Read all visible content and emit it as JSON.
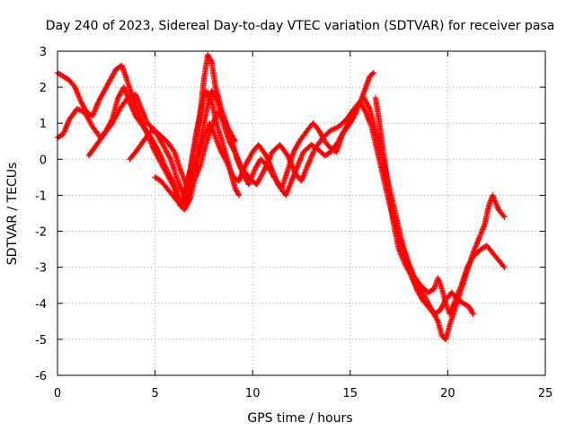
{
  "chart_data": {
    "type": "scatter",
    "title": "Day 240 of 2023, Sidereal Day-to-day VTEC variation (SDTVAR) for receiver pasa",
    "xlabel": "GPS time / hours",
    "ylabel": "SDTVAR / TECUs",
    "xlim": [
      0,
      25
    ],
    "ylim": [
      -6,
      3
    ],
    "x_ticks": [
      0,
      5,
      10,
      15,
      20,
      25
    ],
    "y_ticks": [
      -6,
      -5,
      -4,
      -3,
      -2,
      -1,
      0,
      1,
      2,
      3
    ],
    "x_tick_labels": [
      "0",
      "5",
      "10",
      "15",
      "20",
      "25"
    ],
    "y_tick_labels": [
      "-6",
      "-5",
      "-4",
      "-3",
      "-2",
      "-1",
      "0",
      "1",
      "2",
      "3"
    ],
    "grid": true,
    "marker": "+",
    "series": [
      {
        "color": "#ff0000",
        "tracks": [
          [
            [
              0.0,
              2.4
            ],
            [
              0.3,
              2.3
            ],
            [
              0.6,
              2.2
            ],
            [
              0.9,
              2.0
            ],
            [
              1.2,
              1.6
            ],
            [
              1.5,
              1.3
            ],
            [
              1.8,
              1.2
            ],
            [
              2.1,
              1.6
            ],
            [
              2.4,
              1.9
            ],
            [
              2.7,
              2.2
            ],
            [
              3.0,
              2.5
            ],
            [
              3.3,
              2.6
            ],
            [
              3.5,
              2.3
            ],
            [
              3.8,
              1.8
            ],
            [
              4.2,
              1.2
            ],
            [
              4.6,
              0.7
            ],
            [
              5.0,
              0.2
            ],
            [
              5.5,
              -0.3
            ],
            [
              6.0,
              -0.8
            ],
            [
              6.3,
              -1.3
            ],
            [
              6.5,
              -1.0
            ],
            [
              6.8,
              -0.3
            ],
            [
              7.1,
              0.7
            ],
            [
              7.4,
              1.5
            ],
            [
              7.6,
              1.9
            ],
            [
              7.9,
              1.6
            ],
            [
              8.2,
              0.9
            ],
            [
              8.5,
              0.4
            ],
            [
              8.8,
              -0.2
            ],
            [
              9.1,
              -0.8
            ],
            [
              9.3,
              -1.0
            ]
          ],
          [
            [
              0.0,
              0.6
            ],
            [
              0.3,
              0.7
            ],
            [
              0.6,
              1.1
            ],
            [
              1.0,
              1.4
            ],
            [
              1.4,
              1.3
            ],
            [
              1.8,
              0.9
            ],
            [
              2.2,
              0.6
            ],
            [
              2.5,
              0.8
            ],
            [
              2.8,
              1.1
            ],
            [
              3.1,
              1.7
            ],
            [
              3.4,
              2.0
            ],
            [
              3.7,
              1.6
            ],
            [
              4.0,
              1.2
            ],
            [
              4.4,
              0.9
            ],
            [
              4.8,
              0.6
            ],
            [
              5.2,
              0.2
            ],
            [
              5.6,
              -0.3
            ],
            [
              6.0,
              -0.7
            ],
            [
              6.2,
              -1.1
            ],
            [
              6.4,
              -1.3
            ],
            [
              6.7,
              -0.6
            ],
            [
              7.0,
              0.3
            ],
            [
              7.3,
              1.2
            ],
            [
              7.5,
              2.2
            ],
            [
              7.7,
              2.9
            ],
            [
              7.9,
              2.7
            ],
            [
              8.1,
              2.0
            ],
            [
              8.4,
              1.4
            ],
            [
              8.7,
              0.9
            ],
            [
              9.0,
              0.4
            ],
            [
              9.2,
              0.0
            ],
            [
              9.5,
              -0.4
            ],
            [
              9.8,
              -0.7
            ],
            [
              10.1,
              -0.3
            ],
            [
              10.4,
              0.0
            ],
            [
              10.8,
              -0.2
            ],
            [
              11.1,
              -0.5
            ],
            [
              11.5,
              -0.8
            ],
            [
              11.8,
              -0.3
            ],
            [
              12.1,
              0.2
            ],
            [
              12.4,
              0.5
            ],
            [
              12.8,
              0.8
            ],
            [
              13.1,
              1.0
            ],
            [
              13.4,
              0.8
            ],
            [
              13.7,
              0.5
            ],
            [
              14.0,
              0.3
            ],
            [
              14.3,
              0.2
            ],
            [
              14.6,
              0.7
            ],
            [
              15.0,
              1.0
            ],
            [
              15.3,
              1.3
            ],
            [
              15.6,
              1.7
            ],
            [
              15.8,
              2.0
            ],
            [
              16.0,
              2.3
            ],
            [
              16.2,
              2.4
            ]
          ],
          [
            [
              1.6,
              0.1
            ],
            [
              2.0,
              0.4
            ],
            [
              2.4,
              0.7
            ],
            [
              2.8,
              1.0
            ],
            [
              3.2,
              1.4
            ],
            [
              3.6,
              1.7
            ],
            [
              4.0,
              1.8
            ],
            [
              4.3,
              1.4
            ],
            [
              4.6,
              1.0
            ],
            [
              5.0,
              0.8
            ],
            [
              5.4,
              0.4
            ],
            [
              5.8,
              0.0
            ],
            [
              6.1,
              -0.5
            ],
            [
              6.4,
              -0.9
            ],
            [
              6.6,
              -1.2
            ],
            [
              6.8,
              -0.8
            ],
            [
              7.1,
              -0.1
            ],
            [
              7.4,
              0.7
            ],
            [
              7.7,
              1.5
            ],
            [
              7.9,
              1.9
            ],
            [
              8.2,
              1.6
            ],
            [
              8.5,
              1.0
            ],
            [
              8.8,
              0.5
            ],
            [
              9.1,
              0.2
            ],
            [
              9.4,
              -0.2
            ],
            [
              9.8,
              -0.5
            ],
            [
              10.2,
              -0.7
            ],
            [
              10.6,
              -0.3
            ],
            [
              11.0,
              0.2
            ],
            [
              11.4,
              0.4
            ],
            [
              11.8,
              0.1
            ],
            [
              12.2,
              -0.4
            ],
            [
              12.5,
              -0.6
            ],
            [
              12.8,
              -0.2
            ],
            [
              13.2,
              0.3
            ],
            [
              13.6,
              0.6
            ],
            [
              14.0,
              0.8
            ],
            [
              14.4,
              0.9
            ],
            [
              14.8,
              1.1
            ],
            [
              15.2,
              1.4
            ],
            [
              15.5,
              1.6
            ],
            [
              15.8,
              1.3
            ],
            [
              16.1,
              0.9
            ],
            [
              16.4,
              0.2
            ],
            [
              16.7,
              -0.5
            ],
            [
              17.0,
              -1.2
            ],
            [
              17.3,
              -1.8
            ],
            [
              17.6,
              -2.3
            ],
            [
              17.9,
              -2.8
            ],
            [
              18.2,
              -3.2
            ],
            [
              18.6,
              -3.5
            ],
            [
              19.0,
              -3.7
            ],
            [
              19.3,
              -3.6
            ],
            [
              19.5,
              -3.3
            ],
            [
              19.7,
              -3.6
            ],
            [
              19.9,
              -4.0
            ],
            [
              20.1,
              -4.3
            ],
            [
              20.4,
              -3.9
            ],
            [
              20.7,
              -3.5
            ],
            [
              21.0,
              -3.0
            ],
            [
              21.3,
              -2.7
            ],
            [
              21.7,
              -2.5
            ],
            [
              22.0,
              -2.4
            ],
            [
              22.3,
              -2.6
            ],
            [
              22.6,
              -2.8
            ],
            [
              22.9,
              -3.0
            ]
          ],
          [
            [
              3.7,
              0.0
            ],
            [
              4.0,
              0.2
            ],
            [
              4.4,
              0.5
            ],
            [
              4.8,
              0.8
            ],
            [
              5.2,
              0.7
            ],
            [
              5.6,
              0.5
            ],
            [
              6.0,
              0.2
            ],
            [
              6.3,
              -0.3
            ],
            [
              6.6,
              -0.7
            ],
            [
              6.9,
              -0.4
            ],
            [
              7.2,
              0.1
            ],
            [
              7.5,
              0.6
            ],
            [
              7.8,
              1.0
            ],
            [
              8.1,
              0.6
            ],
            [
              8.4,
              0.2
            ],
            [
              8.7,
              -0.1
            ],
            [
              9.0,
              -0.5
            ],
            [
              9.3,
              -0.6
            ],
            [
              9.6,
              -0.2
            ],
            [
              10.0,
              0.2
            ],
            [
              10.3,
              0.4
            ],
            [
              10.7,
              0.1
            ],
            [
              11.0,
              -0.3
            ],
            [
              11.3,
              -0.7
            ],
            [
              11.7,
              -1.0
            ],
            [
              12.0,
              -0.6
            ],
            [
              12.3,
              -0.2
            ],
            [
              12.6,
              0.2
            ],
            [
              13.0,
              0.4
            ],
            [
              13.3,
              0.3
            ],
            [
              13.7,
              0.1
            ],
            [
              14.0,
              0.2
            ],
            [
              14.4,
              0.5
            ],
            [
              14.8,
              0.9
            ],
            [
              15.1,
              1.2
            ],
            [
              15.4,
              1.5
            ],
            [
              15.7,
              1.7
            ],
            [
              16.0,
              1.4
            ],
            [
              16.2,
              1.0
            ],
            [
              16.5,
              0.4
            ],
            [
              16.8,
              -0.3
            ],
            [
              17.1,
              -1.0
            ],
            [
              17.4,
              -1.7
            ],
            [
              17.7,
              -2.4
            ],
            [
              18.0,
              -2.9
            ],
            [
              18.3,
              -3.3
            ],
            [
              18.6,
              -3.6
            ],
            [
              18.9,
              -3.9
            ],
            [
              19.2,
              -4.2
            ],
            [
              19.5,
              -4.5
            ],
            [
              19.7,
              -4.9
            ],
            [
              19.9,
              -5.0
            ],
            [
              20.1,
              -4.6
            ],
            [
              20.4,
              -4.1
            ],
            [
              20.7,
              -3.6
            ],
            [
              21.0,
              -3.1
            ],
            [
              21.3,
              -2.6
            ],
            [
              21.6,
              -2.2
            ],
            [
              21.9,
              -1.8
            ],
            [
              22.1,
              -1.3
            ],
            [
              22.3,
              -1.0
            ],
            [
              22.6,
              -1.4
            ],
            [
              22.9,
              -1.6
            ]
          ],
          [
            [
              16.3,
              1.7
            ],
            [
              16.5,
              1.0
            ],
            [
              16.7,
              0.2
            ],
            [
              16.9,
              -0.6
            ],
            [
              17.1,
              -1.4
            ],
            [
              17.3,
              -2.0
            ],
            [
              17.5,
              -2.5
            ],
            [
              17.8,
              -2.9
            ],
            [
              18.1,
              -3.2
            ],
            [
              18.4,
              -3.6
            ],
            [
              18.7,
              -3.9
            ],
            [
              19.0,
              -4.1
            ],
            [
              19.3,
              -4.3
            ],
            [
              19.6,
              -4.2
            ],
            [
              19.9,
              -3.9
            ],
            [
              20.2,
              -3.7
            ],
            [
              20.5,
              -3.9
            ],
            [
              20.8,
              -4.0
            ],
            [
              21.1,
              -4.1
            ],
            [
              21.3,
              -4.3
            ]
          ],
          [
            [
              5.0,
              -0.5
            ],
            [
              5.3,
              -0.6
            ],
            [
              5.6,
              -0.8
            ],
            [
              5.9,
              -1.0
            ],
            [
              6.2,
              -1.2
            ],
            [
              6.5,
              -1.4
            ],
            [
              6.8,
              -1.1
            ],
            [
              7.0,
              -0.6
            ],
            [
              7.3,
              -0.2
            ],
            [
              7.6,
              0.4
            ],
            [
              7.9,
              0.9
            ],
            [
              8.2,
              1.3
            ],
            [
              8.5,
              1.1
            ],
            [
              8.8,
              0.8
            ],
            [
              9.1,
              0.5
            ]
          ]
        ]
      }
    ]
  }
}
